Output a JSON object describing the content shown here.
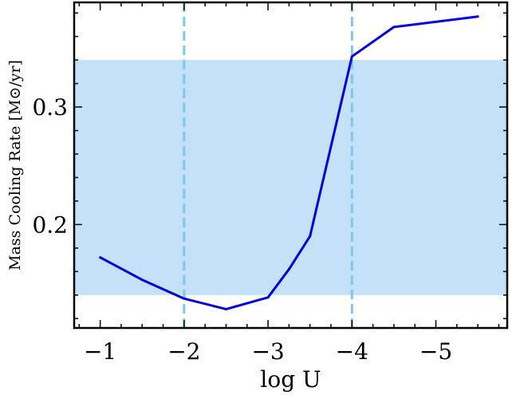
{
  "chart_data": {
    "type": "line",
    "xlabel": "log U",
    "ylabel": "Mass Cooling Rate [M⊙/yr]",
    "x_reversed": true,
    "xlim": [
      -0.69,
      -5.85
    ],
    "ylim": [
      0.112,
      0.389
    ],
    "x_ticks": [
      -1,
      -2,
      -3,
      -4,
      -5
    ],
    "x_tick_labels": [
      "−1",
      "−2",
      "−3",
      "−4",
      "−5"
    ],
    "y_ticks": [
      0.2,
      0.3
    ],
    "y_tick_labels": [
      "0.2",
      "0.3"
    ],
    "series": [
      {
        "color": "#0000dd",
        "x": [
          -1.0,
          -1.5,
          -2.0,
          -2.5,
          -3.0,
          -3.25,
          -3.5,
          -4.0,
          -4.5,
          -5.5
        ],
        "y": [
          0.172,
          0.153,
          0.137,
          0.128,
          0.138,
          0.162,
          0.19,
          0.343,
          0.368,
          0.377
        ]
      }
    ],
    "band": {
      "y0": 0.14,
      "y1": 0.34,
      "color": "#c4e2f7"
    },
    "vlines": [
      {
        "x": -2.0,
        "color": "#7cc7f2",
        "style": "dashed"
      },
      {
        "x": -4.0,
        "color": "#7cc7f2",
        "style": "dashed"
      }
    ],
    "grid": false,
    "legend": "none"
  }
}
